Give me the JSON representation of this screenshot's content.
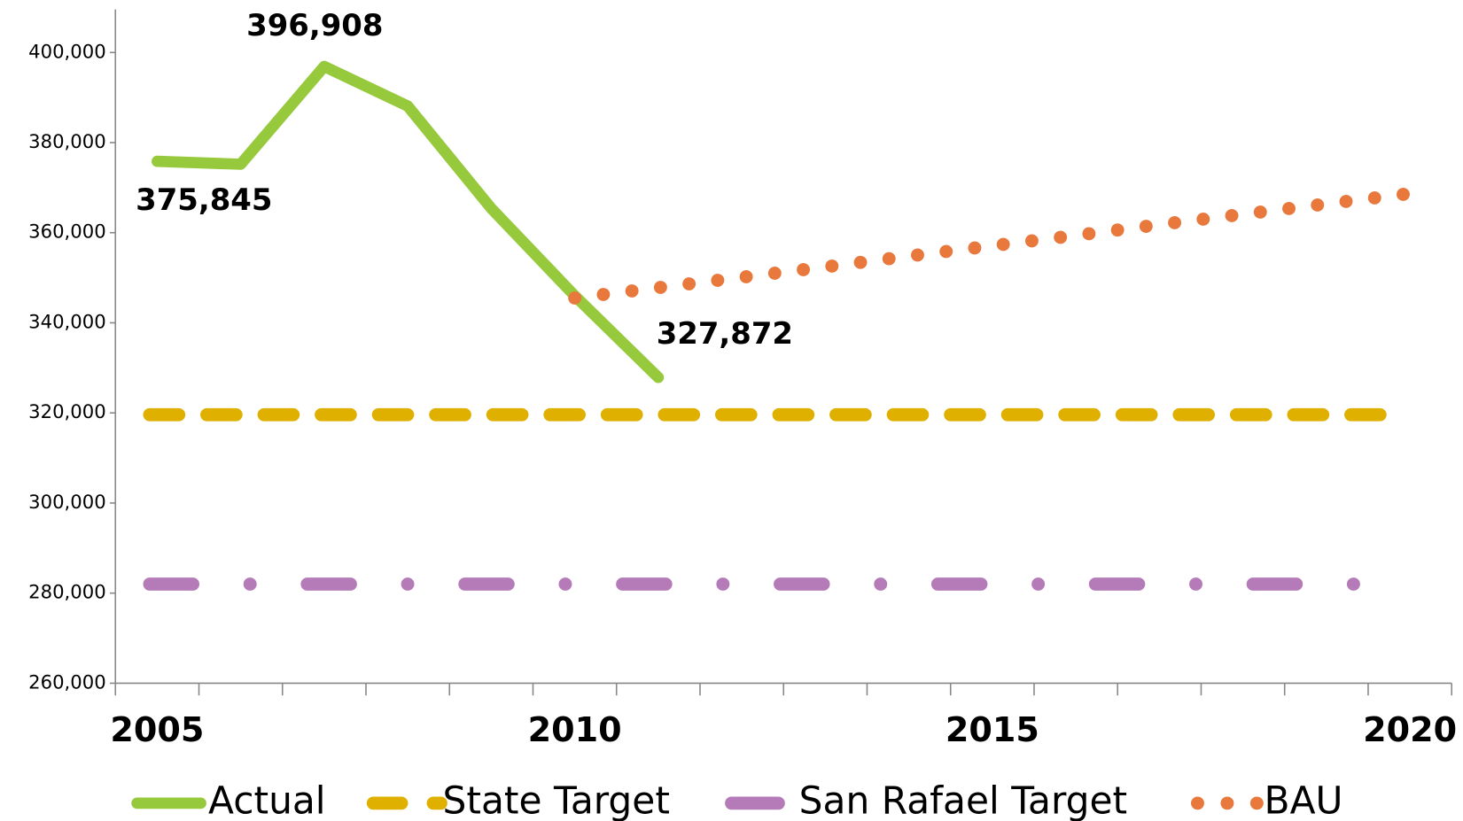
{
  "chart_data": {
    "type": "line",
    "categories": [
      "2005",
      null,
      null,
      null,
      null,
      "2010",
      null,
      null,
      null,
      null,
      "2015",
      null,
      null,
      null,
      null,
      "2020"
    ],
    "ylim": [
      260000,
      400000
    ],
    "yticks": [
      {
        "value": 260000,
        "label": "260,000"
      },
      {
        "value": 280000,
        "label": "280,000"
      },
      {
        "value": 300000,
        "label": "300,000"
      },
      {
        "value": 320000,
        "label": "320,000"
      },
      {
        "value": 340000,
        "label": "340,000"
      },
      {
        "value": 360000,
        "label": "360,000"
      },
      {
        "value": 380000,
        "label": "380,000"
      },
      {
        "value": 400000,
        "label": "400,000"
      }
    ],
    "series": [
      {
        "name": "Actual",
        "color": "#97c93d",
        "line_style": "solid",
        "values": [
          375845,
          375200,
          396908,
          388100,
          365400,
          346000,
          327872,
          null,
          null,
          null,
          null,
          null,
          null,
          null,
          null,
          null
        ],
        "value_labels": [
          "375,845",
          null,
          "396,908",
          null,
          null,
          null,
          "327,872",
          null,
          null,
          null,
          null,
          null,
          null,
          null,
          null,
          null
        ]
      },
      {
        "name": "State Target",
        "color": "#e0b000",
        "line_style": "dashed",
        "values": [
          319600,
          319600,
          319600,
          319600,
          319600,
          319600,
          319600,
          319600,
          319600,
          319600,
          319600,
          319600,
          319600,
          319600,
          319600,
          319600
        ]
      },
      {
        "name": "San Rafael Target",
        "color": "#b57bb9",
        "line_style": "dashdot",
        "values": [
          282000,
          282000,
          282000,
          282000,
          282000,
          282000,
          282000,
          282000,
          282000,
          282000,
          282000,
          282000,
          282000,
          282000,
          282000,
          282000
        ]
      },
      {
        "name": "BAU",
        "color": "#e8783c",
        "line_style": "dotted",
        "values": [
          null,
          null,
          null,
          null,
          null,
          345500,
          347800,
          350100,
          352400,
          354800,
          357100,
          359400,
          361800,
          364100,
          366400,
          368700
        ]
      }
    ]
  }
}
